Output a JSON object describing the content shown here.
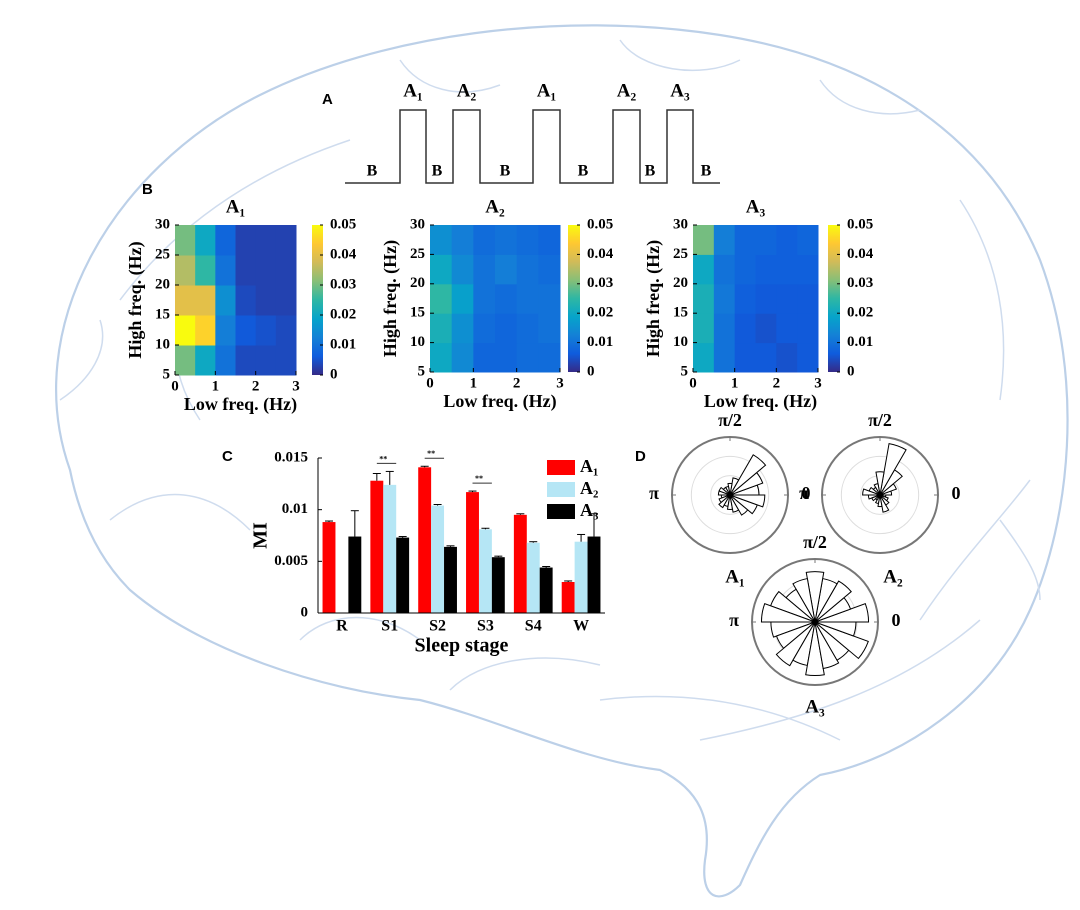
{
  "panel_labels": [
    "A",
    "B",
    "C",
    "D"
  ],
  "panel_a": {
    "pulses": [
      "A₁",
      "A₂",
      "A₁",
      "A₂",
      "A₃"
    ],
    "baselines": [
      "B",
      "B",
      "B",
      "B",
      "B",
      "B"
    ]
  },
  "chart_data": [
    {
      "type": "heatmap",
      "title": "A₁",
      "x_label": "Low freq. (Hz)",
      "y_label": "High freq. (Hz)",
      "x_bins": [
        0,
        0.5,
        1,
        1.5,
        2,
        2.5,
        3
      ],
      "y_bins": [
        5,
        10,
        15,
        20,
        25,
        30
      ],
      "z": [
        [
          0.03,
          0.02,
          0.01,
          0.004,
          0.004,
          0.004
        ],
        [
          0.05,
          0.045,
          0.012,
          0.006,
          0.005,
          0.004
        ],
        [
          0.04,
          0.04,
          0.015,
          0.004,
          0.003,
          0.003
        ],
        [
          0.035,
          0.025,
          0.01,
          0.003,
          0.003,
          0.003
        ],
        [
          0.03,
          0.02,
          0.008,
          0.003,
          0.003,
          0.003
        ]
      ],
      "xlim": [
        0,
        3
      ],
      "ylim": [
        5,
        30
      ],
      "xticks": [
        0,
        1,
        2,
        3
      ],
      "yticks": [
        5,
        10,
        15,
        20,
        25,
        30
      ],
      "colorbar": {
        "lim": [
          0,
          0.05
        ],
        "ticks": [
          0,
          0.01,
          0.02,
          0.03,
          0.04,
          0.05
        ],
        "colors": [
          "#352a87",
          "#0f5cdd",
          "#1481d6",
          "#06a4ca",
          "#2eb7a4",
          "#87bf77",
          "#d1bb59",
          "#fec832",
          "#f9fb0e"
        ]
      }
    },
    {
      "type": "heatmap",
      "title": "A₂",
      "x_label": "Low freq. (Hz)",
      "y_label": "High freq. (Hz)",
      "x_bins": [
        0,
        0.5,
        1,
        1.5,
        2,
        2.5,
        3
      ],
      "y_bins": [
        5,
        10,
        15,
        20,
        25,
        30
      ],
      "z": [
        [
          0.02,
          0.014,
          0.008,
          0.008,
          0.009,
          0.009
        ],
        [
          0.022,
          0.015,
          0.009,
          0.008,
          0.009,
          0.01
        ],
        [
          0.025,
          0.018,
          0.01,
          0.009,
          0.01,
          0.01
        ],
        [
          0.02,
          0.014,
          0.01,
          0.012,
          0.01,
          0.009
        ],
        [
          0.015,
          0.012,
          0.009,
          0.01,
          0.009,
          0.008
        ]
      ],
      "xlim": [
        0,
        3
      ],
      "ylim": [
        5,
        30
      ],
      "xticks": [
        0,
        1,
        2,
        3
      ],
      "yticks": [
        5,
        10,
        15,
        20,
        25,
        30
      ],
      "colorbar": {
        "lim": [
          0,
          0.05
        ],
        "ticks": [
          0,
          0.01,
          0.02,
          0.03,
          0.04,
          0.05
        ],
        "colors": [
          "#352a87",
          "#0f5cdd",
          "#1481d6",
          "#06a4ca",
          "#2eb7a4",
          "#87bf77",
          "#d1bb59",
          "#fec832",
          "#f9fb0e"
        ]
      }
    },
    {
      "type": "heatmap",
      "title": "A₃",
      "x_label": "Low freq. (Hz)",
      "y_label": "High freq. (Hz)",
      "x_bins": [
        0,
        0.5,
        1,
        1.5,
        2,
        2.5,
        3
      ],
      "y_bins": [
        5,
        10,
        15,
        20,
        25,
        30
      ],
      "z": [
        [
          0.02,
          0.01,
          0.006,
          0.006,
          0.005,
          0.006
        ],
        [
          0.022,
          0.01,
          0.006,
          0.005,
          0.006,
          0.006
        ],
        [
          0.022,
          0.011,
          0.007,
          0.006,
          0.006,
          0.006
        ],
        [
          0.02,
          0.01,
          0.008,
          0.007,
          0.007,
          0.007
        ],
        [
          0.03,
          0.012,
          0.008,
          0.008,
          0.007,
          0.008
        ]
      ],
      "xlim": [
        0,
        3
      ],
      "ylim": [
        5,
        30
      ],
      "xticks": [
        0,
        1,
        2,
        3
      ],
      "yticks": [
        5,
        10,
        15,
        20,
        25,
        30
      ],
      "colorbar": {
        "lim": [
          0,
          0.05
        ],
        "ticks": [
          0,
          0.01,
          0.02,
          0.03,
          0.04,
          0.05
        ],
        "colors": [
          "#352a87",
          "#0f5cdd",
          "#1481d6",
          "#06a4ca",
          "#2eb7a4",
          "#87bf77",
          "#d1bb59",
          "#fec832",
          "#f9fb0e"
        ]
      }
    },
    {
      "type": "bar",
      "x_label": "Sleep stage",
      "y_label": "MI",
      "categories": [
        "R",
        "S1",
        "S2",
        "S3",
        "S4",
        "W"
      ],
      "series": [
        {
          "name": "A₁",
          "color": "#ff0000",
          "values": [
            0.0088,
            0.0128,
            0.0141,
            0.0117,
            0.0095,
            0.003
          ],
          "errors": [
            0.0001,
            0.0007,
            0.0001,
            0.0001,
            0.0001,
            0.0001
          ]
        },
        {
          "name": "A₂",
          "color": "#b5e6f5",
          "values": [
            null,
            0.0124,
            0.0104,
            0.0081,
            0.0068,
            0.0069
          ],
          "errors": [
            null,
            0.0013,
            0.0001,
            0.0001,
            0.0001,
            0.0007
          ]
        },
        {
          "name": "A₃",
          "color": "#000000",
          "values": [
            0.0074,
            0.0073,
            0.0064,
            0.0054,
            0.0044,
            0.0074
          ],
          "errors": [
            0.0025,
            0.0001,
            0.0001,
            0.0001,
            0.0001,
            0.0022
          ]
        }
      ],
      "ylim": [
        0,
        0.015
      ],
      "yticks": [
        0,
        0.005,
        0.01,
        0.015
      ],
      "legend": "upper right",
      "significance": [
        {
          "label": "**",
          "category": "S1"
        },
        {
          "label": "**",
          "category": "S2"
        },
        {
          "label": "**",
          "category": "S3"
        }
      ]
    },
    {
      "type": "polar_histogram",
      "title": "A₁",
      "color": "#000000",
      "bins": [
        0,
        20,
        40,
        60,
        80,
        100,
        120,
        140,
        160,
        180,
        200,
        220,
        240,
        260,
        280,
        300,
        320,
        340,
        360
      ],
      "values": [
        0.5,
        0.6,
        0.8,
        0.3,
        0.2,
        0.15,
        0.15,
        0.2,
        0.2,
        0.15,
        0.2,
        0.25,
        0.2,
        0.25,
        0.3,
        0.4,
        0.5,
        0.6
      ],
      "rlim": [
        0,
        1
      ],
      "thetaticks": [
        {
          "value": 0,
          "label": "0"
        },
        {
          "value": 90,
          "label": "π/2"
        },
        {
          "value": 180,
          "label": "π"
        }
      ]
    },
    {
      "type": "polar_histogram",
      "title": "A₂",
      "color": "#000000",
      "bins": [
        0,
        20,
        40,
        60,
        80,
        100,
        120,
        140,
        160,
        180,
        200,
        220,
        240,
        260,
        280,
        300,
        320,
        340,
        360
      ],
      "values": [
        0.2,
        0.3,
        0.5,
        0.9,
        0.4,
        0.2,
        0.15,
        0.2,
        0.3,
        0.2,
        0.15,
        0.1,
        0.15,
        0.2,
        0.3,
        0.2,
        0.15,
        0.1
      ],
      "rlim": [
        0,
        1
      ],
      "thetaticks": [
        {
          "value": 0,
          "label": "0"
        },
        {
          "value": 90,
          "label": "π/2"
        },
        {
          "value": 180,
          "label": "π"
        }
      ]
    },
    {
      "type": "polar_histogram",
      "title": "A₃",
      "color": "#000000",
      "bins": [
        0,
        20,
        40,
        60,
        80,
        100,
        120,
        140,
        160,
        180,
        200,
        220,
        240,
        260,
        280,
        300,
        320,
        340,
        360
      ],
      "values": [
        0.85,
        0.6,
        0.75,
        0.7,
        0.8,
        0.7,
        0.6,
        0.75,
        0.85,
        0.7,
        0.65,
        0.8,
        0.7,
        0.85,
        0.75,
        0.7,
        0.9,
        0.65
      ],
      "rlim": [
        0,
        1
      ],
      "thetaticks": [
        {
          "value": 0,
          "label": "0"
        },
        {
          "value": 90,
          "label": "π/2"
        },
        {
          "value": 180,
          "label": "π"
        }
      ]
    }
  ]
}
